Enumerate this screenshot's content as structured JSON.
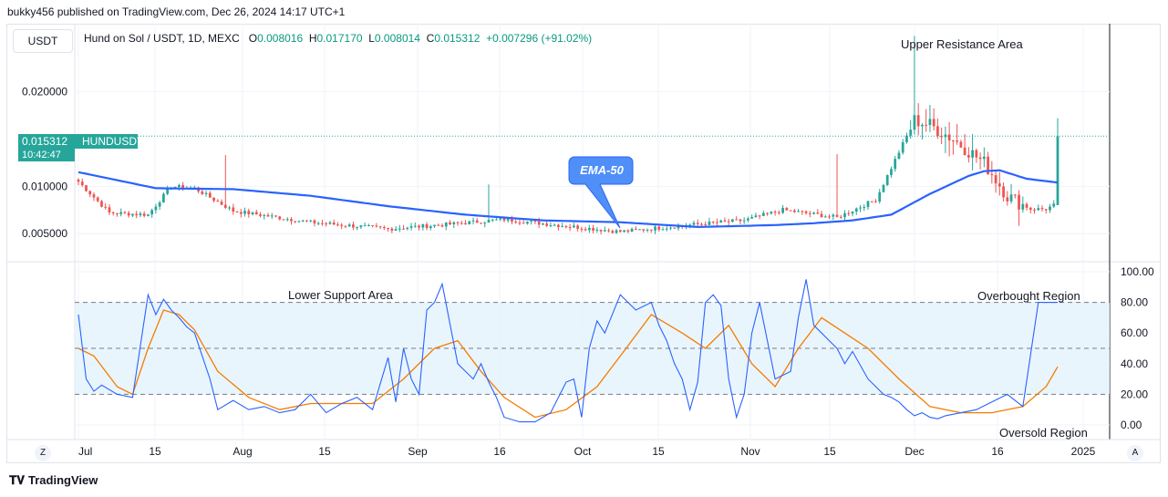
{
  "header": {
    "published": "bukky456 published on TradingView.com, Dec 26, 2024 14:17 UTC+1"
  },
  "currency_button": "USDT",
  "legend": {
    "symbol": "Hund on Sol / USDT, 1D, MEXC",
    "o_label": "O",
    "o": "0.008016",
    "h_label": "H",
    "h": "0.017170",
    "l_label": "L",
    "l": "0.008014",
    "c_label": "C",
    "c": "0.015312",
    "change": "+0.007296 (+91.02%)"
  },
  "price_tag": {
    "price": "0.015312",
    "symbol": "HUNDUSDT",
    "timer": "10:42:47"
  },
  "footer": {
    "logo": "TradingView",
    "z": "Z",
    "a": "A"
  },
  "colors": {
    "up": "#26a69a",
    "down": "#ef5350",
    "ema": "#2962ff",
    "rsi": "#2962ff",
    "rsi_ma": "#f57c00",
    "band": "#e3f2fd"
  },
  "chart_data": [
    {
      "type": "candlestick",
      "title": "",
      "x_tick_labels": [
        "Jul",
        "15",
        "Aug",
        "15",
        "Sep",
        "16",
        "Oct",
        "15",
        "Nov",
        "15",
        "Dec",
        "16",
        "2025"
      ],
      "y_tick_labels": [
        "0.020000",
        "0.015312",
        "0.010000",
        "0.005000"
      ],
      "ylim": [
        0.0,
        0.0272
      ],
      "annotations": [
        "Upper Resistance Area",
        "EMA-50"
      ],
      "series": [
        {
          "name": "EMA-50",
          "x": [
            0,
            20,
            40,
            60,
            80,
            100,
            120,
            140,
            160,
            170,
            180,
            190,
            200,
            210,
            220,
            230,
            234,
            238,
            245,
            253
          ],
          "values": [
            0.0115,
            0.0098,
            0.0097,
            0.009,
            0.0079,
            0.007,
            0.0064,
            0.0062,
            0.0057,
            0.0058,
            0.0059,
            0.0061,
            0.0064,
            0.007,
            0.0092,
            0.0111,
            0.0116,
            0.0117,
            0.0108,
            0.0104
          ]
        }
      ],
      "ohlc_anchors": {
        "bar_index": [
          0,
          8,
          18,
          24,
          30,
          40,
          60,
          80,
          96,
          110,
          126,
          140,
          160,
          172,
          182,
          196,
          206,
          216,
          220,
          226,
          234,
          240,
          246,
          250,
          252,
          253
        ],
        "close": [
          0.0105,
          0.0072,
          0.007,
          0.01,
          0.0098,
          0.0074,
          0.0062,
          0.0055,
          0.006,
          0.0065,
          0.0058,
          0.0052,
          0.006,
          0.0064,
          0.0075,
          0.0067,
          0.0086,
          0.017,
          0.0165,
          0.015,
          0.0125,
          0.009,
          0.0076,
          0.0076,
          0.008,
          0.0153
        ],
        "high_spikes": [
          {
            "bar": 38,
            "high": 0.0133
          },
          {
            "bar": 106,
            "high": 0.0102
          },
          {
            "bar": 196,
            "high": 0.0134
          },
          {
            "bar": 216,
            "high": 0.0259
          },
          {
            "bar": 253,
            "high": 0.0172
          }
        ]
      }
    },
    {
      "type": "line",
      "title": "",
      "y_tick_labels": [
        "100.00",
        "80.00",
        "60.00",
        "40.00",
        "20.00",
        "0.00"
      ],
      "ylim": [
        -4,
        102
      ],
      "band": [
        20,
        80
      ],
      "annotations": [
        "Lower Support Area",
        "Overbought Region",
        "Oversold Region"
      ],
      "series": [
        {
          "name": "",
          "x": [
            0,
            2,
            4,
            6,
            10,
            14,
            18,
            20,
            22,
            24,
            26,
            28,
            30,
            32,
            34,
            36,
            40,
            44,
            48,
            52,
            56,
            60,
            64,
            68,
            72,
            76,
            80,
            82,
            84,
            86,
            88,
            90,
            92,
            94,
            98,
            102,
            104,
            106,
            108,
            110,
            114,
            118,
            122,
            126,
            128,
            130,
            132,
            134,
            136,
            140,
            144,
            148,
            150,
            152,
            154,
            156,
            158,
            160,
            162,
            164,
            166,
            168,
            170,
            172,
            174,
            176,
            180,
            184,
            186,
            188,
            190,
            192,
            194,
            196,
            198,
            200,
            204,
            208,
            210,
            212,
            214,
            216,
            218,
            220,
            222,
            224,
            228,
            232,
            236,
            240,
            244,
            248,
            250,
            252,
            253
          ],
          "values": [
            72,
            30,
            22,
            26,
            20,
            18,
            85,
            72,
            82,
            75,
            70,
            64,
            60,
            45,
            30,
            10,
            16,
            10,
            12,
            8,
            10,
            20,
            8,
            14,
            18,
            10,
            44,
            15,
            50,
            30,
            20,
            75,
            80,
            92,
            40,
            30,
            40,
            28,
            18,
            5,
            2,
            2,
            8,
            28,
            30,
            5,
            50,
            68,
            60,
            85,
            75,
            80,
            65,
            55,
            40,
            30,
            10,
            28,
            80,
            85,
            78,
            30,
            5,
            20,
            60,
            80,
            30,
            35,
            70,
            95,
            65,
            60,
            55,
            50,
            40,
            48,
            30,
            20,
            18,
            15,
            10,
            6,
            8,
            5,
            4,
            6,
            8,
            10,
            15,
            20,
            12,
            80,
            80,
            80,
            80
          ]
        },
        {
          "name": "",
          "x": [
            0,
            4,
            10,
            14,
            18,
            22,
            26,
            30,
            36,
            44,
            52,
            60,
            68,
            76,
            84,
            92,
            98,
            104,
            110,
            118,
            126,
            134,
            140,
            148,
            156,
            162,
            168,
            174,
            180,
            186,
            192,
            198,
            204,
            212,
            220,
            228,
            236,
            244,
            250,
            253
          ],
          "values": [
            50,
            45,
            25,
            20,
            50,
            75,
            72,
            62,
            35,
            18,
            10,
            14,
            14,
            14,
            30,
            50,
            55,
            35,
            18,
            5,
            10,
            25,
            45,
            72,
            60,
            50,
            65,
            40,
            25,
            50,
            70,
            60,
            50,
            30,
            12,
            8,
            8,
            12,
            25,
            38
          ]
        }
      ]
    }
  ]
}
